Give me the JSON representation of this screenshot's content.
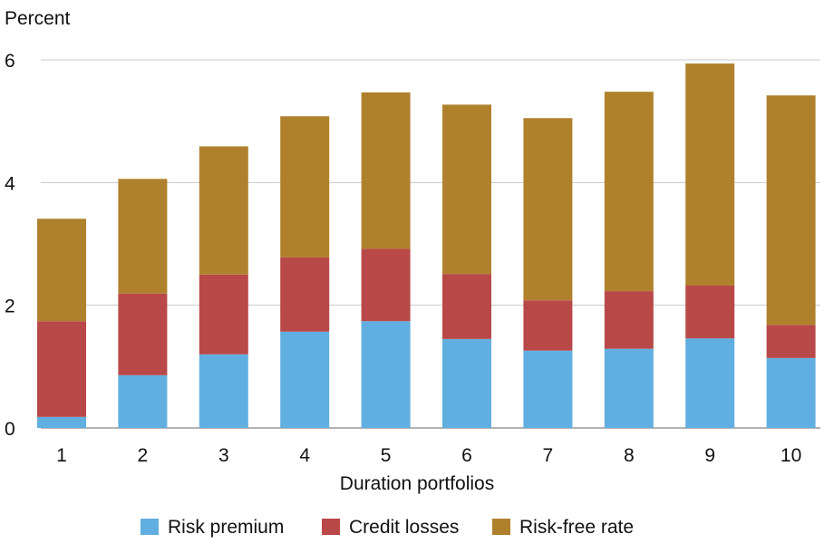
{
  "chart_data": {
    "type": "bar",
    "stacked": true,
    "ylabel": "Percent",
    "xlabel": "Duration portfolios",
    "ylim": [
      0,
      6
    ],
    "yticks": [
      0,
      2,
      4,
      6
    ],
    "grid": true,
    "legend_position": "bottom",
    "categories": [
      "1",
      "2",
      "3",
      "4",
      "5",
      "6",
      "7",
      "8",
      "9",
      "10"
    ],
    "series": [
      {
        "name": "Risk premium",
        "color": "#61afe0",
        "values": [
          0.18,
          0.86,
          1.2,
          1.57,
          1.74,
          1.45,
          1.26,
          1.29,
          1.46,
          1.14
        ]
      },
      {
        "name": "Credit losses",
        "color": "#b94848",
        "values": [
          1.56,
          1.33,
          1.3,
          1.21,
          1.18,
          1.06,
          0.82,
          0.94,
          0.86,
          0.54
        ]
      },
      {
        "name": "Risk-free rate",
        "color": "#b0812d",
        "values": [
          1.67,
          1.87,
          2.09,
          2.3,
          2.55,
          2.76,
          2.97,
          3.25,
          3.62,
          3.74
        ]
      }
    ]
  }
}
